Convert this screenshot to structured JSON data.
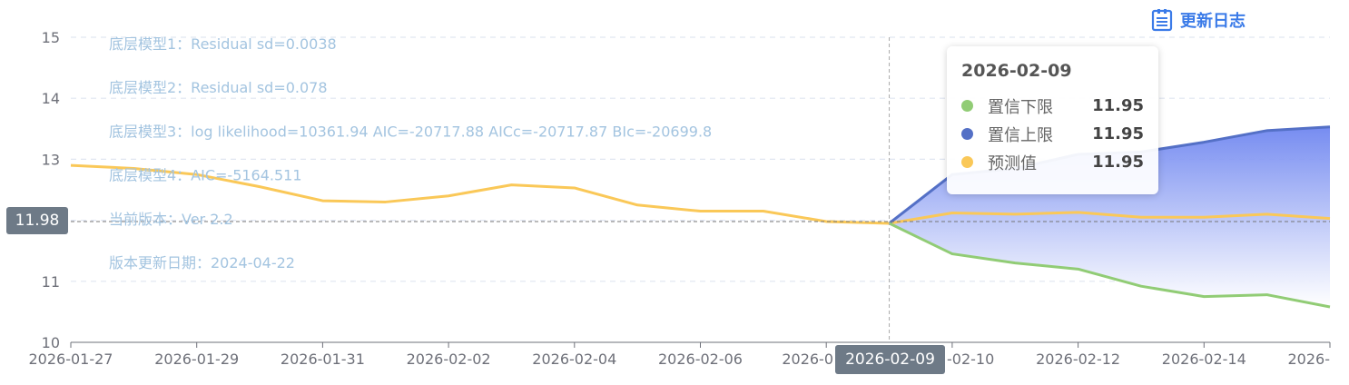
{
  "changelog_label": "更新日志",
  "annotations": [
    "底层模型1：Residual sd=0.0038",
    "底层模型2：Residual sd=0.078",
    "底层模型3：log likelihood=10361.94 AIC=-20717.88 AICc=-20717.87 BIc=-20699.8",
    "底层模型4：AIC=-5164.511",
    "当前版本：Ver 2.2",
    "版本更新日期：2024-04-22"
  ],
  "tooltip": {
    "title": "2026-02-09",
    "rows": [
      {
        "name": "置信下限",
        "value": "11.95",
        "color": "#91cc75"
      },
      {
        "name": "置信上限",
        "value": "11.95",
        "color": "#5470c6"
      },
      {
        "name": "预测值",
        "value": "11.95",
        "color": "#fac858"
      }
    ]
  },
  "axis_pointer": {
    "y_label": "11.98",
    "x_label": "2026-02-09"
  },
  "chart_data": {
    "type": "line",
    "x": [
      "2026-01-27",
      "2026-01-28",
      "2026-01-29",
      "2026-01-30",
      "2026-01-31",
      "2026-02-01",
      "2026-02-02",
      "2026-02-03",
      "2026-02-04",
      "2026-02-05",
      "2026-02-06",
      "2026-02-07",
      "2026-02-08",
      "2026-02-09",
      "2026-02-10",
      "2026-02-11",
      "2026-02-12",
      "2026-02-13",
      "2026-02-14",
      "2026-02-15",
      "2026-02-16"
    ],
    "x_tick_labels": [
      "2026-01-27",
      "2026-01-29",
      "2026-01-31",
      "2026-02-02",
      "2026-02-04",
      "2026-02-06",
      "2026-0",
      "-02-10",
      "2026-02-12",
      "2026-02-14",
      "2026-"
    ],
    "x_tick_positions": [
      "2026-01-27",
      "2026-01-29",
      "2026-01-31",
      "2026-02-02",
      "2026-02-04",
      "2026-02-06",
      "2026-02-08",
      "2026-02-10",
      "2026-02-12",
      "2026-02-14",
      "2026-02-16"
    ],
    "ylim": [
      10,
      15
    ],
    "y_ticks": [
      10,
      11,
      12,
      13,
      14,
      15
    ],
    "grid": true,
    "series": [
      {
        "name": "预测值",
        "color": "#fac858",
        "values": [
          12.9,
          12.85,
          12.75,
          12.55,
          12.32,
          12.3,
          12.4,
          12.58,
          12.53,
          12.25,
          12.15,
          12.15,
          11.98,
          11.95,
          12.12,
          12.1,
          12.13,
          12.05,
          12.05,
          12.1,
          12.03
        ]
      },
      {
        "name": "置信上限",
        "color": "#5470c6",
        "values": [
          null,
          null,
          null,
          null,
          null,
          null,
          null,
          null,
          null,
          null,
          null,
          null,
          null,
          11.95,
          12.75,
          12.85,
          13.08,
          13.12,
          13.28,
          13.47,
          13.53
        ]
      },
      {
        "name": "置信下限",
        "color": "#91cc75",
        "values": [
          null,
          null,
          null,
          null,
          null,
          null,
          null,
          null,
          null,
          null,
          null,
          null,
          null,
          11.95,
          11.45,
          11.3,
          11.2,
          10.92,
          10.75,
          10.78,
          10.58
        ]
      }
    ],
    "reference_line": 11.98,
    "pointer_x": "2026-02-09"
  }
}
